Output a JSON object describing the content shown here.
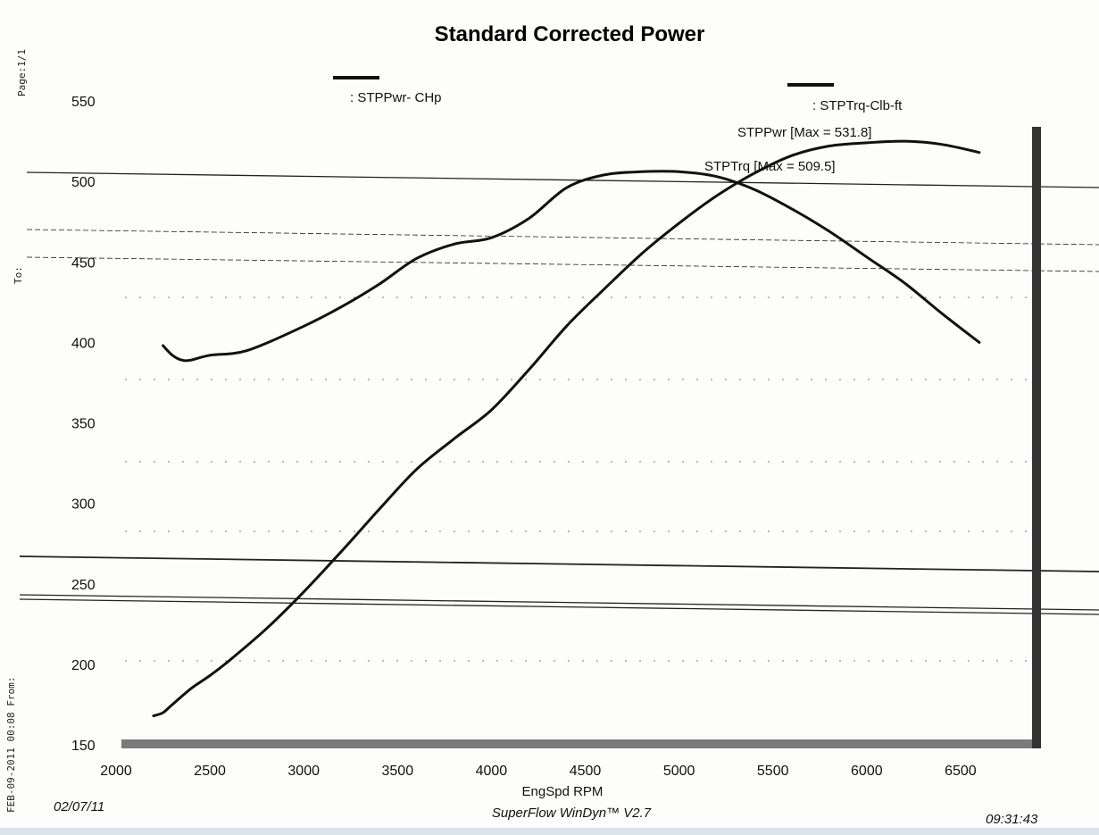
{
  "side_text": {
    "page": "Page:1/1",
    "to": "To:",
    "from": "FEB-09-2011 00:08 From:"
  },
  "footer": {
    "date": "02/07/11",
    "software": "SuperFlow WinDyn™ V2.7",
    "time": "09:31:43"
  },
  "colors": {
    "ink": "#111111",
    "paper": "#fdfdfc",
    "band": "#d9e4ea"
  },
  "chart_data": {
    "type": "line",
    "title": "Standard Corrected Power",
    "xlabel": "EngSpd  RPM",
    "ylabel": "",
    "xlim": [
      2000,
      6900
    ],
    "ylim": [
      150,
      550
    ],
    "x_ticks": [
      "2000",
      "2500",
      "3000",
      "3500",
      "4000",
      "4500",
      "5000",
      "5500",
      "6000",
      "6500"
    ],
    "y_ticks": [
      "550",
      "500",
      "450",
      "400",
      "350",
      "300",
      "250",
      "200",
      "150"
    ],
    "legend": [
      {
        "name": "STPPwr- CHp",
        "label": ": STPPwr- CHp"
      },
      {
        "name": "STPTrq-Clb-ft",
        "label": ": STPTrq-Clb-ft"
      }
    ],
    "annotations": [
      {
        "text": "STPPwr [Max = 531.8]"
      },
      {
        "text": "STPTrq [Max = 509.5]"
      }
    ],
    "series": [
      {
        "name": "STPPwr",
        "x": [
          2200,
          2250,
          2300,
          2400,
          2500,
          2600,
          2800,
          3000,
          3200,
          3400,
          3600,
          3800,
          4000,
          4200,
          4400,
          4600,
          4800,
          5000,
          5200,
          5400,
          5600,
          5800,
          6000,
          6200,
          6400,
          6600
        ],
        "y": [
          168,
          170,
          175,
          185,
          193,
          202,
          222,
          245,
          270,
          296,
          321,
          340,
          358,
          383,
          410,
          433,
          455,
          474,
          491,
          505,
          516,
          522,
          524,
          525,
          523,
          518
        ]
      },
      {
        "name": "STPTrq",
        "x": [
          2250,
          2300,
          2350,
          2400,
          2500,
          2700,
          3000,
          3200,
          3400,
          3600,
          3800,
          4000,
          4200,
          4400,
          4600,
          4800,
          5000,
          5200,
          5400,
          5600,
          5800,
          6000,
          6200,
          6400,
          6600
        ],
        "y": [
          398,
          392,
          389,
          389,
          392,
          395,
          410,
          422,
          436,
          452,
          461,
          465,
          477,
          496,
          504,
          506,
          506,
          503,
          495,
          483,
          469,
          453,
          437,
          418,
          400
        ]
      }
    ]
  }
}
